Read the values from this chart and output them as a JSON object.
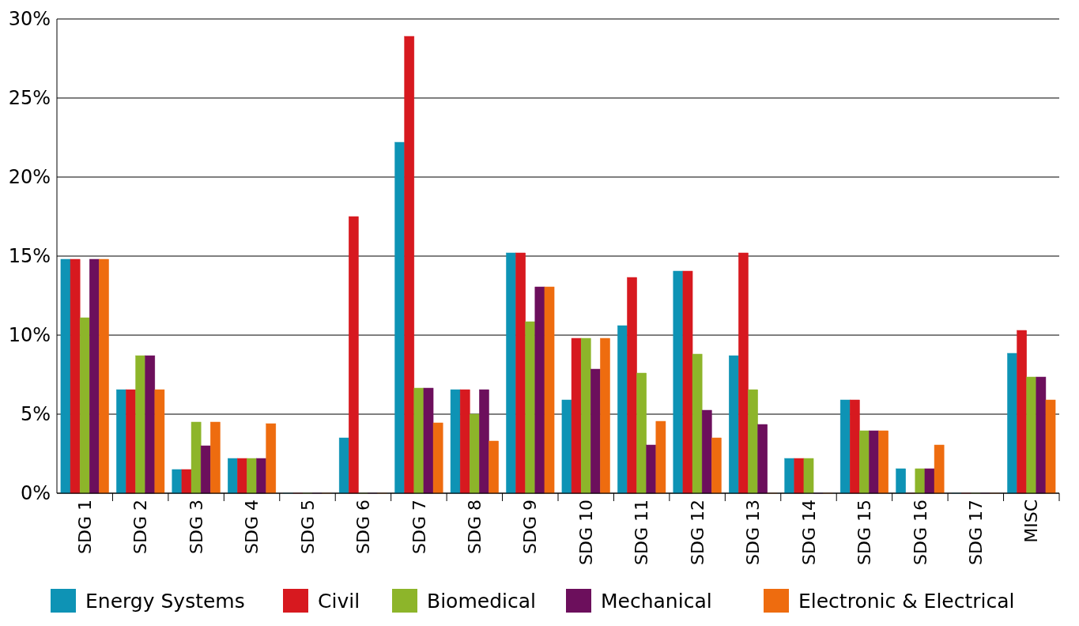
{
  "chart_data": {
    "type": "bar",
    "categories": [
      "SDG 1",
      "SDG 2",
      "SDG 3",
      "SDG 4",
      "SDG 5",
      "SDG 6",
      "SDG 7",
      "SDG 8",
      "SDG 9",
      "SDG 10",
      "SDG 11",
      "SDG 12",
      "SDG 13",
      "SDG 14",
      "SDG 15",
      "SDG 16",
      "SDG 17",
      "MISC"
    ],
    "series": [
      {
        "name": "Energy Systems",
        "color": "#0e93b5",
        "values": [
          14.8,
          6.55,
          1.5,
          2.2,
          0,
          3.5,
          22.2,
          6.55,
          15.2,
          5.9,
          10.6,
          14.05,
          8.7,
          2.2,
          5.9,
          1.55,
          0,
          8.85
        ]
      },
      {
        "name": "Civil",
        "color": "#d7191f",
        "values": [
          14.8,
          6.55,
          1.5,
          2.2,
          0,
          17.5,
          28.9,
          6.55,
          15.2,
          9.8,
          13.65,
          14.05,
          15.2,
          2.2,
          5.9,
          0,
          0,
          10.3
        ]
      },
      {
        "name": "Biomedical",
        "color": "#8db52a",
        "values": [
          11.1,
          8.7,
          4.5,
          2.2,
          0,
          0,
          6.65,
          5.0,
          10.85,
          9.8,
          7.6,
          8.8,
          6.55,
          2.2,
          3.95,
          1.55,
          0,
          7.35
        ]
      },
      {
        "name": "Mechanical",
        "color": "#6c0f5c",
        "values": [
          14.8,
          8.7,
          3.0,
          2.2,
          0,
          0,
          6.65,
          6.55,
          13.05,
          7.85,
          3.05,
          5.25,
          4.35,
          0,
          3.95,
          1.55,
          0,
          7.35
        ]
      },
      {
        "name": "Electronic & Electrical",
        "color": "#ee6c0f",
        "values": [
          14.8,
          6.55,
          4.5,
          4.4,
          0,
          0,
          4.45,
          3.3,
          13.05,
          9.8,
          4.55,
          3.5,
          0,
          0,
          3.95,
          3.05,
          0,
          5.9
        ]
      }
    ],
    "ylim": [
      0,
      30
    ],
    "yticks": [
      {
        "value": 0,
        "label": "0%"
      },
      {
        "value": 5,
        "label": "5%"
      },
      {
        "value": 10,
        "label": "10%"
      },
      {
        "value": 15,
        "label": "15%"
      },
      {
        "value": 20,
        "label": "20%"
      },
      {
        "value": 25,
        "label": "25%"
      },
      {
        "value": 30,
        "label": "30%"
      }
    ],
    "grid": "y",
    "legend": "bottom"
  }
}
